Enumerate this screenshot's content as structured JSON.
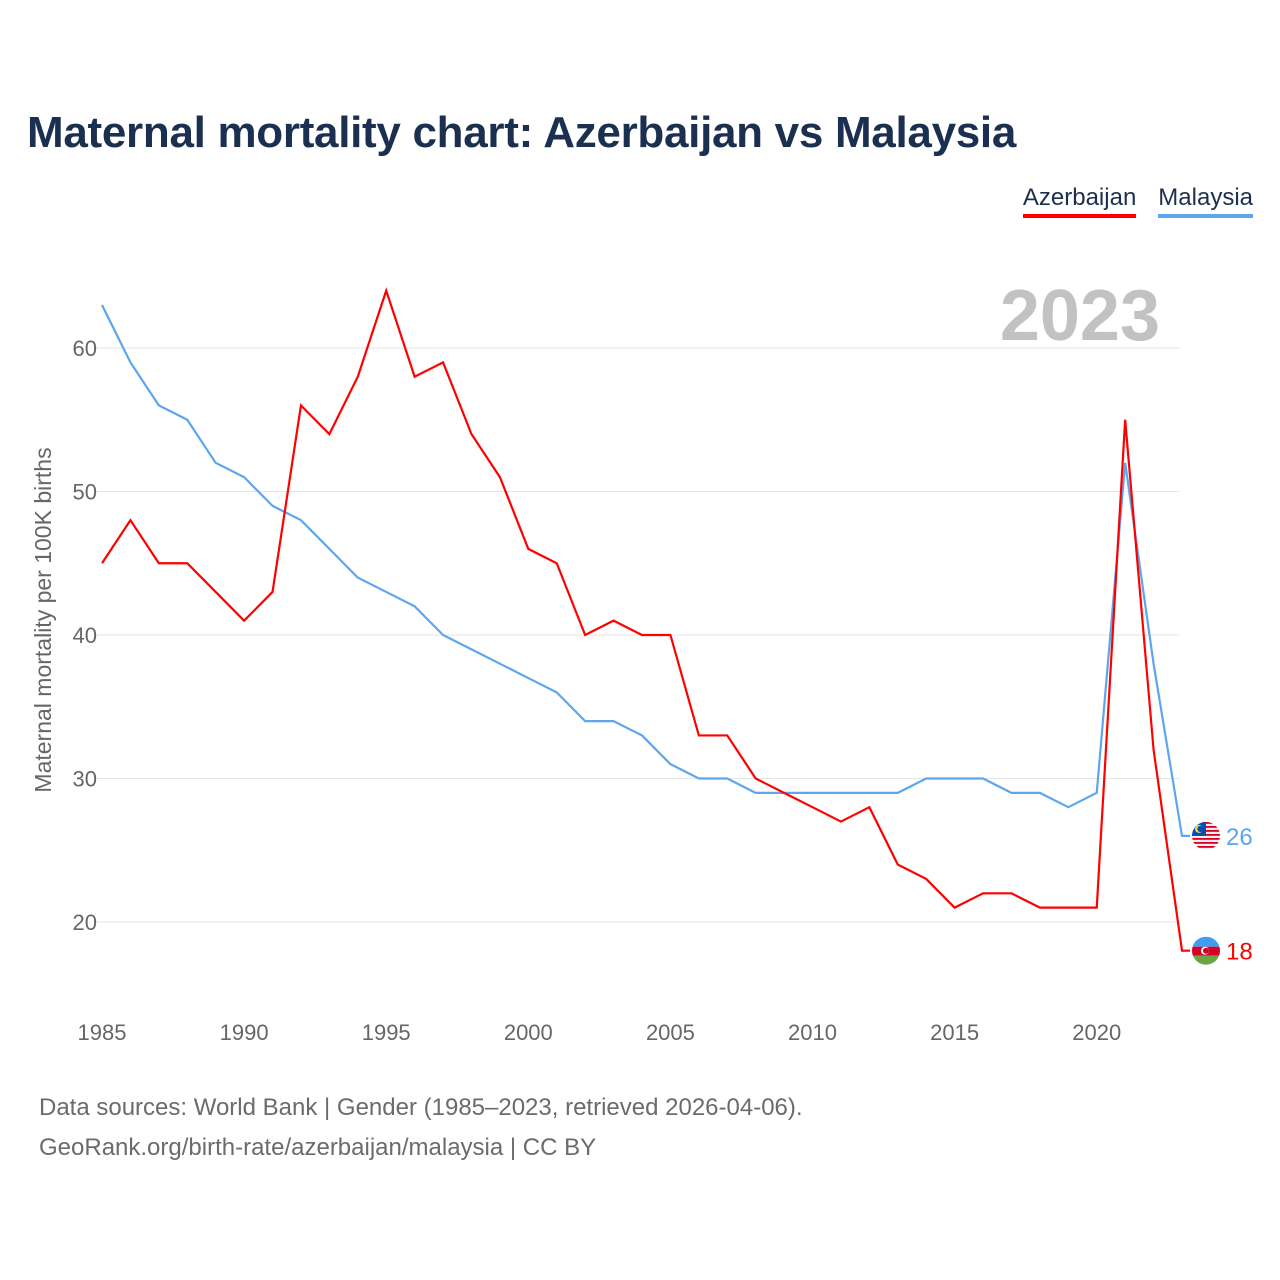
{
  "title": "Maternal mortality chart: Azerbaijan vs Malaysia",
  "footer": {
    "line1": "Data sources: World Bank | Gender (1985–2023, retrieved 2026-04-06).",
    "line2": "GeoRank.org/birth-rate/azerbaijan/malaysia | CC BY"
  },
  "chart_data": {
    "type": "line",
    "title": "Maternal mortality chart: Azerbaijan vs Malaysia",
    "ylabel": "Maternal mortality per 100K births",
    "xlabel": "",
    "year_label": "2023",
    "xlim": [
      1985,
      2023
    ],
    "ylim": [
      15,
      65
    ],
    "yticks": [
      20,
      30,
      40,
      50,
      60
    ],
    "xticks": [
      1985,
      1990,
      1995,
      2000,
      2005,
      2010,
      2015,
      2020
    ],
    "grid": true,
    "legend_position": "top-right",
    "x": [
      1985,
      1986,
      1987,
      1988,
      1989,
      1990,
      1991,
      1992,
      1993,
      1994,
      1995,
      1996,
      1997,
      1998,
      1999,
      2000,
      2001,
      2002,
      2003,
      2004,
      2005,
      2006,
      2007,
      2008,
      2009,
      2010,
      2011,
      2012,
      2013,
      2014,
      2015,
      2016,
      2017,
      2018,
      2019,
      2020,
      2021,
      2022,
      2023
    ],
    "series": [
      {
        "name": "Azerbaijan",
        "color": "#ff0000",
        "end_label": "18",
        "values": [
          45,
          48,
          45,
          45,
          43,
          41,
          43,
          56,
          54,
          58,
          64,
          58,
          59,
          54,
          51,
          46,
          45,
          40,
          41,
          40,
          40,
          33,
          33,
          30,
          29,
          28,
          27,
          28,
          24,
          23,
          21,
          22,
          22,
          21,
          21,
          21,
          55,
          32,
          18
        ]
      },
      {
        "name": "Malaysia",
        "color": "#5ea6ec",
        "end_label": "26",
        "values": [
          63,
          59,
          56,
          55,
          52,
          51,
          49,
          48,
          46,
          44,
          43,
          42,
          40,
          39,
          38,
          37,
          36,
          34,
          34,
          33,
          31,
          30,
          30,
          29,
          29,
          29,
          29,
          29,
          29,
          30,
          30,
          30,
          29,
          29,
          28,
          29,
          52,
          38,
          26
        ]
      }
    ]
  }
}
